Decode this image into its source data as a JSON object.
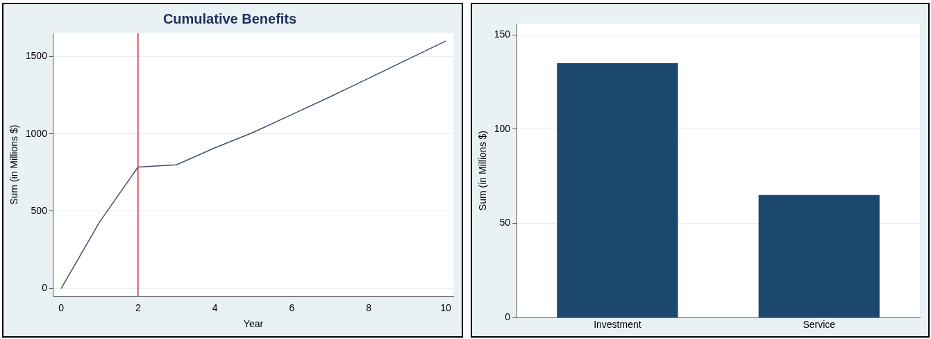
{
  "chart_data": [
    {
      "type": "line",
      "title": "Cumulative Benefits",
      "xlabel": "Year",
      "ylabel": "Sum (in Millions $)",
      "x": [
        0,
        1,
        2,
        3,
        4,
        5,
        6,
        7,
        8,
        9,
        10
      ],
      "series": [
        {
          "color": "#3e4f70",
          "values": [
            0,
            430,
            785,
            800,
            910,
            1010,
            1125,
            1240,
            1360,
            1480,
            1600
          ]
        }
      ],
      "xlim": [
        -0.2,
        10.2
      ],
      "xticks": [
        0,
        2,
        4,
        6,
        8,
        10
      ],
      "ylim": [
        -50,
        1650
      ],
      "yticks": [
        0,
        500,
        1000,
        1500
      ],
      "ref_lines": [
        {
          "axis": "x",
          "value": 2,
          "color": "#c8283c"
        }
      ],
      "grid": "y",
      "marker": "none",
      "line_style": "solid"
    },
    {
      "type": "bar",
      "ylabel": "Sum (in Millions $)",
      "categories": [
        "Investment",
        "Service"
      ],
      "values": [
        135,
        65
      ],
      "color": "#1c476f",
      "ylim": [
        0,
        156
      ],
      "yticks": [
        0,
        50,
        100,
        150
      ],
      "grid": "y"
    }
  ]
}
